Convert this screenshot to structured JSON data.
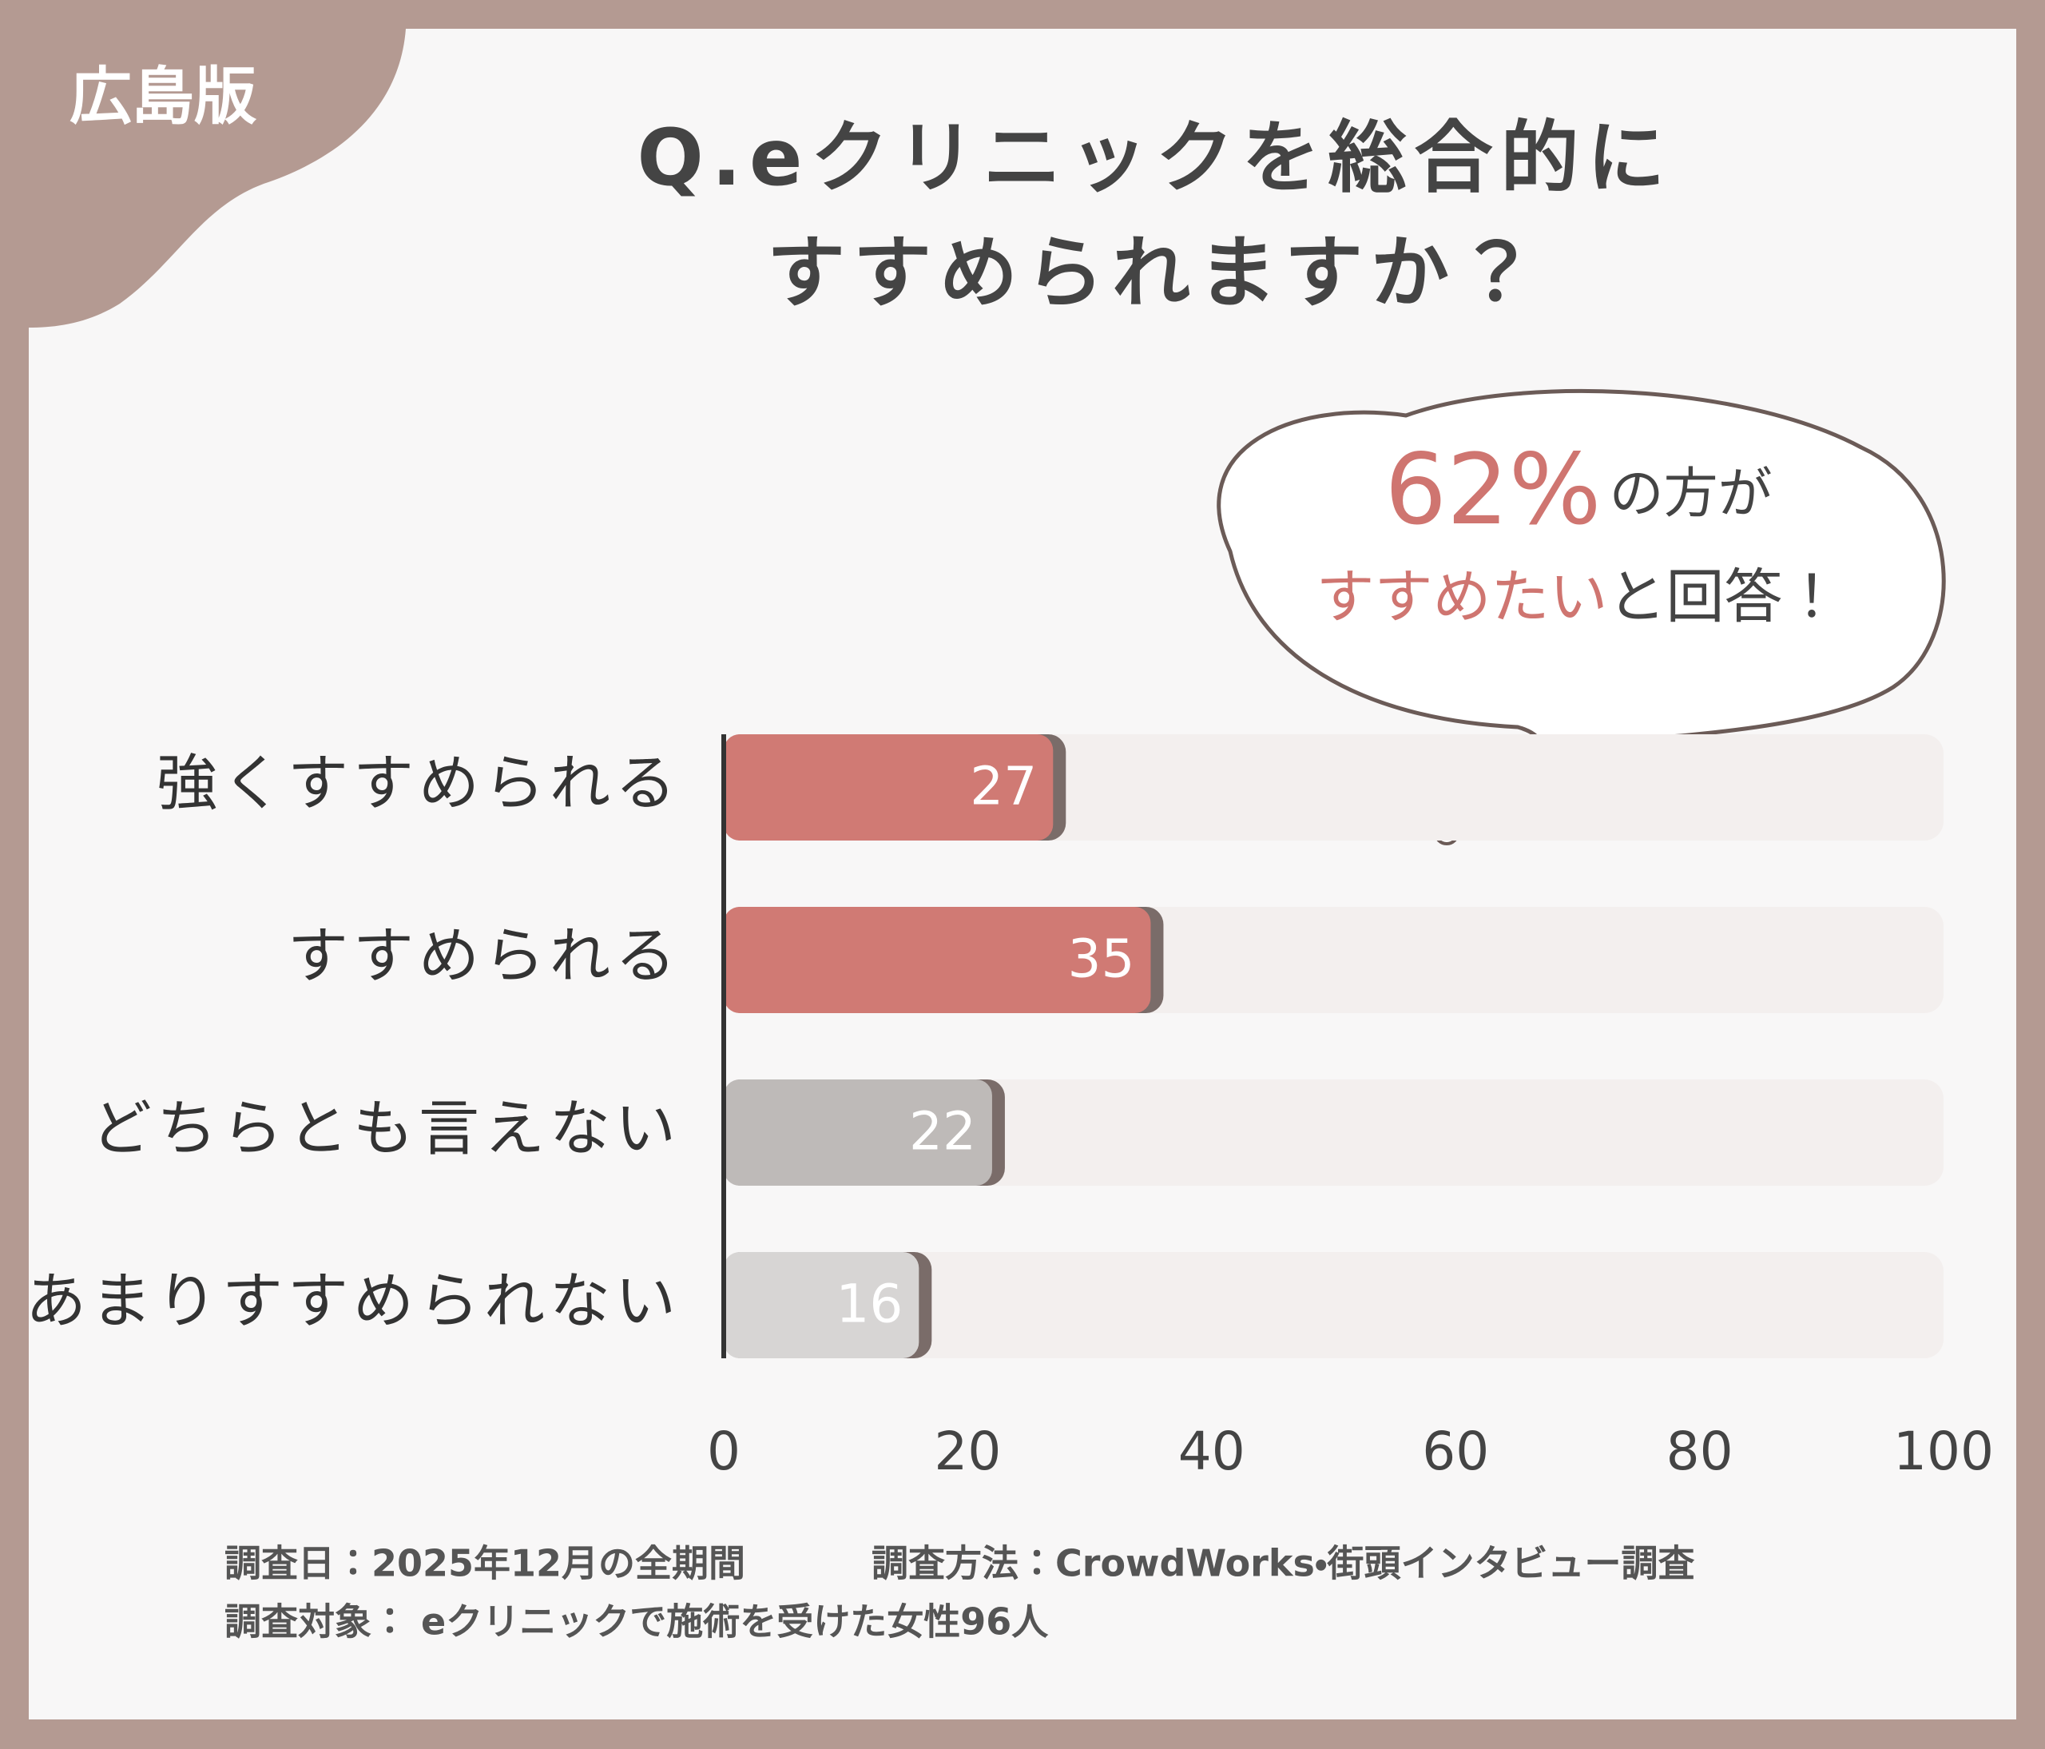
{
  "badge": "広島版",
  "chart_data": {
    "type": "bar",
    "orientation": "horizontal",
    "title": [
      "Q.eクリニックを総合的に",
      "すすめられますか？"
    ],
    "categories": [
      "強くすすめられる",
      "すすめられる",
      "どちらとも言えない",
      "あまりすすめられない"
    ],
    "values": [
      27,
      35,
      22,
      16
    ],
    "colors": [
      "#d07a74",
      "#d07a74",
      "#bebab8",
      "#d7d5d4"
    ],
    "track_color": "#f3efee",
    "xlim": [
      0,
      100
    ],
    "xticks": [
      0,
      20,
      40,
      60,
      80,
      100
    ],
    "callout": {
      "highlight": "62%",
      "line1": "の方が",
      "highlight2": "すすめたい",
      "line2": "と回答！"
    },
    "notes": [
      "調査日：2025年12月の全期間",
      "調査方法：CrowdWorks・街頭インタビュー調査",
      "調査対象： eクリニックで施術を受けた女性96人"
    ]
  }
}
